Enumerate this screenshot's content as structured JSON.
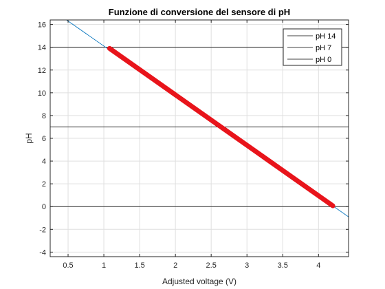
{
  "colors": {
    "grid": "#dfdfdf",
    "axis": "#262626",
    "reference_lines": "#000000",
    "fit_line": "#0072bd",
    "measured_line": "#e8141b"
  },
  "chart_data": {
    "type": "line",
    "title": "Funzione di conversione del sensore di pH",
    "xlabel": "Adjusted voltage (V)",
    "ylabel": "pH",
    "xlim": [
      0.25,
      4.42
    ],
    "ylim": [
      -4.4,
      16.4
    ],
    "xticks": [
      0.5,
      1,
      1.5,
      2,
      2.5,
      3,
      3.5,
      4
    ],
    "xtick_labels": [
      "0.5",
      "1",
      "1.5",
      "2",
      "2.5",
      "3",
      "3.5",
      "4"
    ],
    "yticks": [
      -4,
      -2,
      0,
      2,
      4,
      6,
      8,
      10,
      12,
      14,
      16
    ],
    "ytick_labels": [
      "-4",
      "-2",
      "0",
      "2",
      "4",
      "6",
      "8",
      "10",
      "12",
      "14",
      "16"
    ],
    "grid": true,
    "legend_position": "top-right",
    "reference_lines": [
      {
        "name": "pH 14",
        "y": 14
      },
      {
        "name": "pH 7",
        "y": 7
      },
      {
        "name": "pH 0",
        "y": 0
      }
    ],
    "series": [
      {
        "name": "",
        "style": "thin",
        "x": [
          0.25,
          4.42
        ],
        "y": [
          17.4,
          -0.9
        ]
      },
      {
        "name": "",
        "style": "thick",
        "x": [
          1.08,
          4.2
        ],
        "y": [
          13.9,
          0.07
        ]
      }
    ]
  }
}
